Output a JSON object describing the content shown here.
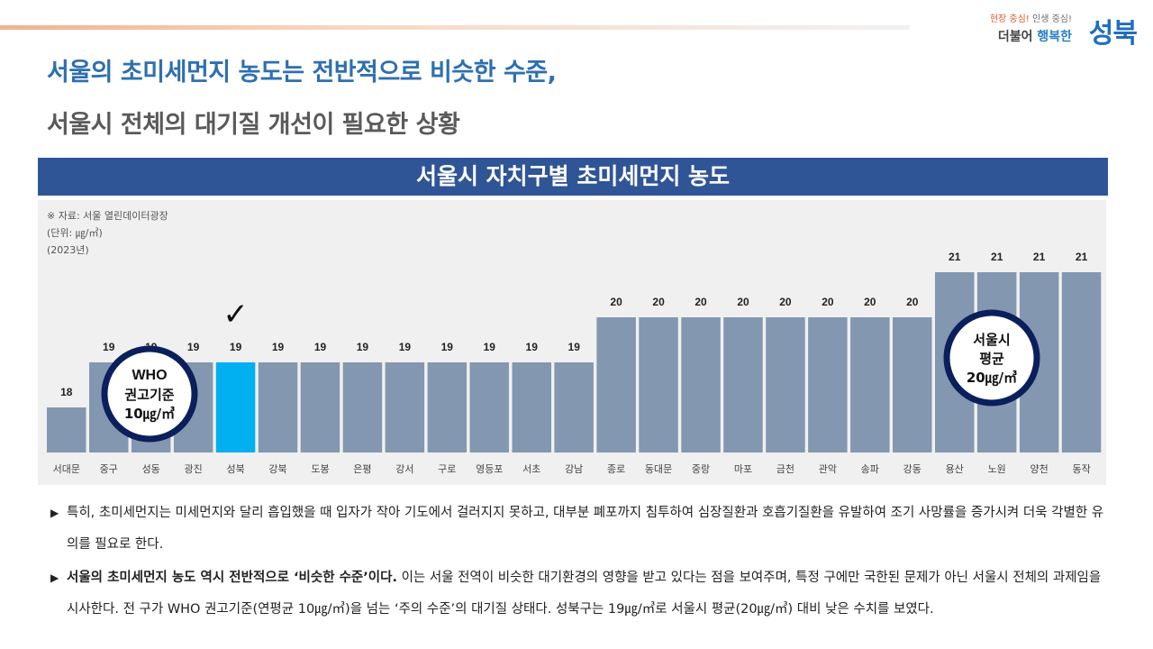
{
  "logo": {
    "slogan_a": "현장 중심!",
    "slogan_b": "인생 중심!",
    "line_a": "더불어",
    "line_b": "행복한",
    "main": "성북"
  },
  "headline": {
    "line1": "서울의 초미세먼지 농도는 전반적으로 비슷한 수준,",
    "line2": "서울시 전체의 대기질 개선이 필요한 상황"
  },
  "chart_title": "서울시 자치구별 초미세먼지 농도",
  "notes": {
    "source": "※ 자료: 서울 열린데이터광장",
    "unit": "(단위: ㎍/㎥)",
    "year": "(2023년)"
  },
  "chart_data": {
    "type": "bar",
    "title": "서울시 자치구별 초미세먼지 농도",
    "categories": [
      "서대문",
      "중구",
      "성동",
      "광진",
      "성북",
      "강북",
      "도봉",
      "은평",
      "강서",
      "구로",
      "영등포",
      "서초",
      "강남",
      "종로",
      "동대문",
      "중랑",
      "마포",
      "금천",
      "관악",
      "송파",
      "강동",
      "용산",
      "노원",
      "양천",
      "동작"
    ],
    "values": [
      18,
      19,
      19,
      19,
      19,
      19,
      19,
      19,
      19,
      19,
      19,
      19,
      19,
      20,
      20,
      20,
      20,
      20,
      20,
      20,
      20,
      21,
      21,
      21,
      21
    ],
    "highlight": "성북",
    "highlight_mark": "✓",
    "unit": "㎍/㎥",
    "colors": {
      "bar": "#8497b0",
      "highlight": "#00b0f0",
      "label": "#222222"
    },
    "ylim": [
      17,
      21.5
    ],
    "grid": false
  },
  "badges": {
    "who": {
      "line1": "WHO",
      "line2": "권고기준",
      "line3": "10㎍/㎥"
    },
    "avg": {
      "line1": "서울시",
      "line2": "평균",
      "line3": "20㎍/㎥"
    }
  },
  "bullets": {
    "marker": "▶",
    "p1": "특히, 초미세먼지는 미세먼지와 달리 흡입했을 때 입자가 작아 기도에서 걸러지지 못하고, 대부분 폐포까지 침투하여 심장질환과 호흡기질환을 유발하여 조기 사망률을 증가시켜 더욱 각별한 유의를 필요로 한다.",
    "p2_bold": "서울의 초미세먼지 농도 역시 전반적으로 ‘비슷한 수준’이다.",
    "p2_rest": " 이는 서울 전역이 비슷한 대기환경의 영향을 받고 있다는 점을 보여주며, 특정 구에만 국한된 문제가 아닌 서울시 전체의 과제임을 시사한다. 전 구가 WHO 권고기준(연평균 10㎍/㎥)을 넘는 ‘주의 수준’의 대기질 상태다. 성북구는 19㎍/㎥로 서울시 평균(20㎍/㎥) 대비 낮은 수치를 보였다."
  }
}
